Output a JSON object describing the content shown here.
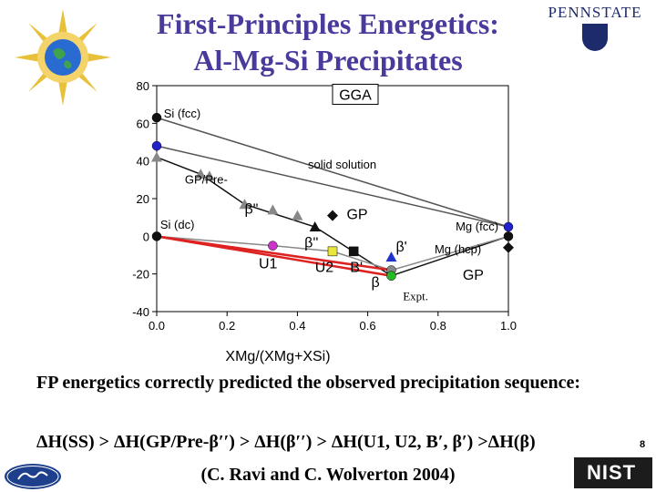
{
  "slide": {
    "title_line1": "First-Principles Energetics:",
    "title_line2": "Al-Mg-Si Precipitates",
    "psu_logo_text": "PENNSTATE",
    "description": "FP energetics correctly predicted the observed precipitation sequence:",
    "formula": "ΔH(SS) > ΔH(GP/Pre-β′′) > ΔH(β′′) > ΔH(U1, U2, B′, β′) >ΔH(β)",
    "citation": "(C. Ravi and C. Wolverton 2004)",
    "page_number": "8",
    "nist_logo_text": "NIST"
  },
  "chart_data": {
    "type": "scatter",
    "xlabel": "XMg/(XMg+XSi)",
    "ylabel": "",
    "xlim": [
      0.0,
      1.0
    ],
    "ylim": [
      -40,
      80
    ],
    "xticks": [
      "0.0",
      "0.2",
      "0.4",
      "0.6",
      "0.8",
      "1.0"
    ],
    "yticks": [
      "80",
      "60",
      "40",
      "20",
      "0",
      "-20",
      "-40"
    ],
    "grid": false,
    "box_label": "GGA",
    "annotations": [
      {
        "text": "Si (fcc)",
        "x": 0.02,
        "y": 63
      },
      {
        "text": "solid solution",
        "x": 0.43,
        "y": 36
      },
      {
        "text": "GP/Pre-",
        "x": 0.08,
        "y": 28
      },
      {
        "text": "β\"",
        "x": 0.25,
        "y": 12
      },
      {
        "text": "GP",
        "x": 0.54,
        "y": 9
      },
      {
        "text": "Si (dc)",
        "x": 0.01,
        "y": 4
      },
      {
        "text": "Mg (fcc)",
        "x": 0.85,
        "y": 3
      },
      {
        "text": "β''",
        "x": 0.42,
        "y": -6
      },
      {
        "text": "β'",
        "x": 0.68,
        "y": -8
      },
      {
        "text": "Mg (hcp)",
        "x": 0.79,
        "y": -9
      },
      {
        "text": "U1",
        "x": 0.29,
        "y": -17
      },
      {
        "text": "U2",
        "x": 0.45,
        "y": -19
      },
      {
        "text": "B'",
        "x": 0.55,
        "y": -19
      },
      {
        "text": "GP",
        "x": 0.87,
        "y": -23
      },
      {
        "text": "β",
        "x": 0.61,
        "y": -27
      },
      {
        "text": "Expt.",
        "x": 0.7,
        "y": -34
      }
    ],
    "points": [
      {
        "x": 0.0,
        "y": 63,
        "marker": "circle",
        "color": "#111111"
      },
      {
        "x": 0.0,
        "y": 48,
        "marker": "circle",
        "color": "#2222cc"
      },
      {
        "x": 0.0,
        "y": 42,
        "marker": "triangle",
        "color": "#888888"
      },
      {
        "x": 0.125,
        "y": 33,
        "marker": "triangle",
        "color": "#888888"
      },
      {
        "x": 0.15,
        "y": 32,
        "marker": "triangle",
        "color": "#888888"
      },
      {
        "x": 0.25,
        "y": 17,
        "marker": "triangle",
        "color": "#888888"
      },
      {
        "x": 0.33,
        "y": 14,
        "marker": "triangle",
        "color": "#888888"
      },
      {
        "x": 0.4,
        "y": 11,
        "marker": "triangle",
        "color": "#888888"
      },
      {
        "x": 0.45,
        "y": 5,
        "marker": "triangle",
        "color": "#111111"
      },
      {
        "x": 0.5,
        "y": 11,
        "marker": "diamond",
        "color": "#111111"
      },
      {
        "x": 0.0,
        "y": 0,
        "marker": "circle",
        "color": "#111111"
      },
      {
        "x": 0.33,
        "y": -5,
        "marker": "circle",
        "color": "#cc33cc"
      },
      {
        "x": 0.5,
        "y": -8,
        "marker": "square",
        "color": "#e8e83a"
      },
      {
        "x": 0.56,
        "y": -8,
        "marker": "square",
        "color": "#111111"
      },
      {
        "x": 0.667,
        "y": -11,
        "marker": "triangle",
        "color": "#2233cc"
      },
      {
        "x": 0.667,
        "y": -18,
        "marker": "circle",
        "color": "#888888"
      },
      {
        "x": 0.667,
        "y": -21,
        "marker": "circle",
        "color": "#22bb22"
      },
      {
        "x": 1.0,
        "y": 5,
        "marker": "circle",
        "color": "#2222cc"
      },
      {
        "x": 1.0,
        "y": 0,
        "marker": "circle",
        "color": "#111111"
      },
      {
        "x": 1.0,
        "y": -6,
        "marker": "diamond",
        "color": "#111111"
      }
    ],
    "lines": [
      {
        "color": "#555555",
        "points": [
          [
            0.0,
            48
          ],
          [
            1.0,
            5
          ]
        ]
      },
      {
        "color": "#555555",
        "points": [
          [
            0.0,
            63
          ],
          [
            1.0,
            5
          ]
        ]
      },
      {
        "color": "#111111",
        "points": [
          [
            0.0,
            42
          ],
          [
            0.125,
            33
          ],
          [
            0.25,
            17
          ],
          [
            0.45,
            5
          ],
          [
            0.667,
            -21
          ],
          [
            1.0,
            0
          ]
        ]
      },
      {
        "color": "#888888",
        "points": [
          [
            0.0,
            0
          ],
          [
            0.33,
            -5
          ],
          [
            0.5,
            -8
          ],
          [
            0.667,
            -18
          ],
          [
            1.0,
            0
          ]
        ]
      },
      {
        "color": "#dd2222",
        "points": [
          [
            0.0,
            0
          ],
          [
            0.667,
            -18
          ]
        ]
      },
      {
        "color": "#dd2222",
        "points": [
          [
            0.0,
            0
          ],
          [
            0.667,
            -21
          ]
        ]
      }
    ]
  }
}
